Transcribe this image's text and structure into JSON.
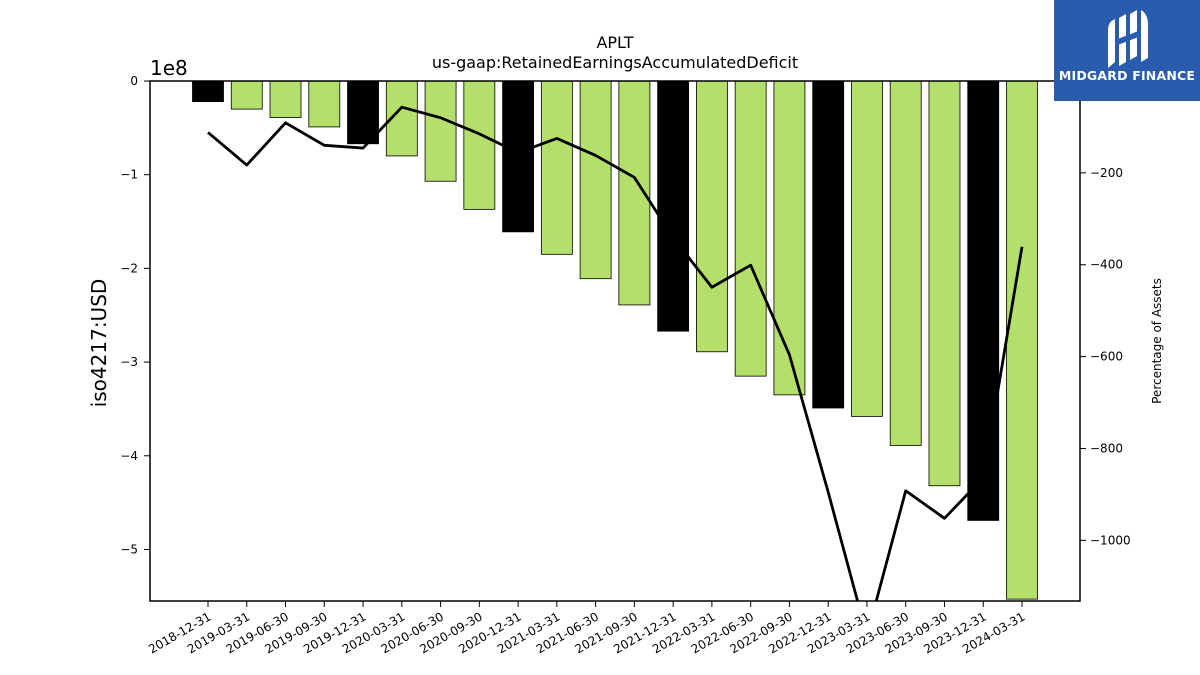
{
  "chart_data": {
    "type": "bar",
    "title": "APLT",
    "subtitle": "us-gaap:RetainedEarningsAccumulatedDeficit",
    "ylabel": "iso4217:USD",
    "y_offset_label": "1e8",
    "y2label": "Percentage of Assets",
    "categories": [
      "2018-12-31",
      "2019-03-31",
      "2019-06-30",
      "2019-09-30",
      "2019-12-31",
      "2020-03-31",
      "2020-06-30",
      "2020-09-30",
      "2020-12-31",
      "2021-03-31",
      "2021-06-30",
      "2021-09-30",
      "2021-12-31",
      "2022-03-31",
      "2022-06-30",
      "2022-09-30",
      "2022-12-31",
      "2023-03-31",
      "2023-06-30",
      "2023-09-30",
      "2023-12-31",
      "2024-03-31"
    ],
    "series": [
      {
        "values": [
          -22000000,
          -30000000,
          -39000000,
          -49000000,
          -67000000,
          -80000000,
          -107000000,
          -137000000,
          -161000000,
          -185000000,
          -211000000,
          -239000000,
          -267000000,
          -289000000,
          -315000000,
          -335000000,
          -349000000,
          -358000000,
          -389000000,
          -432000000,
          -469000000,
          -553000000
        ],
        "bar_colors": [
          "#000000",
          "#b5df6b",
          "#b5df6b",
          "#b5df6b",
          "#000000",
          "#b5df6b",
          "#b5df6b",
          "#b5df6b",
          "#000000",
          "#b5df6b",
          "#b5df6b",
          "#b5df6b",
          "#000000",
          "#b5df6b",
          "#b5df6b",
          "#b5df6b",
          "#000000",
          "#b5df6b",
          "#b5df6b",
          "#b5df6b",
          "#000000",
          "#b5df6b"
        ]
      },
      {
        "axis": "right",
        "type": "line",
        "color": "#000000",
        "values": [
          -112,
          -183,
          -91,
          -140,
          -146,
          -57,
          -80,
          -115,
          -156,
          -125,
          -162,
          -210,
          -341,
          -449,
          -401,
          -596,
          -895,
          -1208,
          -892,
          -952,
          -864,
          -361
        ]
      }
    ],
    "ylim": [
      -555000000,
      0
    ],
    "yticks": [
      0,
      -1,
      -2,
      -3,
      -4,
      -5
    ],
    "y2lim": [
      -1132,
      0
    ],
    "y2ticks": [
      -200,
      -400,
      -600,
      -800,
      -1000
    ],
    "grid": false,
    "legend": "none"
  },
  "logo": {
    "text": "MIDGARD FINANCE",
    "bg_color": "#2a5cad"
  }
}
